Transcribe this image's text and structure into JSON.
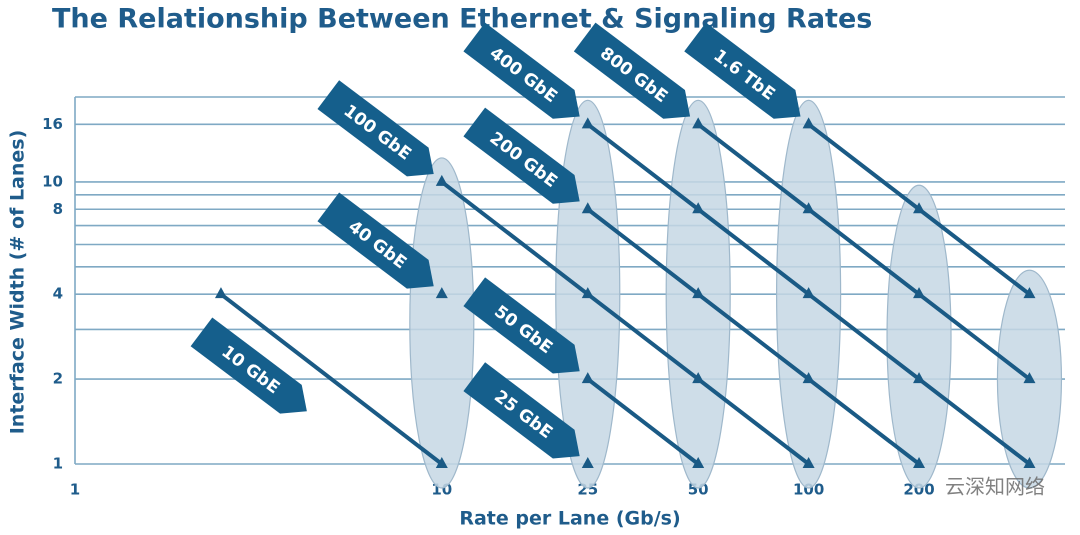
{
  "chart_data": {
    "type": "line",
    "title": "The Relationship Between Ethernet & Signaling Rates",
    "x_label": "Rate per Lane (Gb/s)",
    "y_label": "Interface Width (# of Lanes)",
    "x_scale": "log",
    "y_scale": "log",
    "xlim": [
      1,
      500
    ],
    "ylim": [
      1,
      20
    ],
    "xticks": [
      1,
      10,
      25,
      50,
      100,
      200
    ],
    "yticks": [
      1,
      2,
      4,
      8,
      10,
      16
    ],
    "yminor": [
      3,
      5,
      6,
      7,
      9
    ],
    "grid": true,
    "series": [
      {
        "name": "10 GbE",
        "color": "#1a5a85",
        "x": [
          2.5,
          10
        ],
        "values": [
          4,
          1
        ]
      },
      {
        "name": "40 GbE",
        "color": "#1a5a85",
        "x": [
          10
        ],
        "values": [
          4
        ]
      },
      {
        "name": "100 GbE",
        "color": "#1a5a85",
        "x": [
          10,
          25,
          50,
          100
        ],
        "values": [
          10,
          4,
          2,
          1
        ]
      },
      {
        "name": "25 GbE",
        "color": "#1a5a85",
        "x": [
          25
        ],
        "values": [
          1
        ]
      },
      {
        "name": "50 GbE",
        "color": "#1a5a85",
        "x": [
          25,
          50
        ],
        "values": [
          2,
          1
        ]
      },
      {
        "name": "200 GbE",
        "color": "#1a5a85",
        "x": [
          25,
          50,
          100,
          200
        ],
        "values": [
          8,
          4,
          2,
          1
        ]
      },
      {
        "name": "400 GbE",
        "color": "#1a5a85",
        "x": [
          25,
          50,
          100,
          200,
          400
        ],
        "values": [
          16,
          8,
          4,
          2,
          1
        ]
      },
      {
        "name": "800 GbE",
        "color": "#1a5a85",
        "x": [
          50,
          100,
          200,
          400
        ],
        "values": [
          16,
          8,
          4,
          2
        ]
      },
      {
        "name": "1.6 TbE",
        "color": "#1a5a85",
        "x": [
          100,
          200,
          400
        ],
        "values": [
          16,
          8,
          4
        ]
      }
    ],
    "watermark": "云深知网络"
  }
}
